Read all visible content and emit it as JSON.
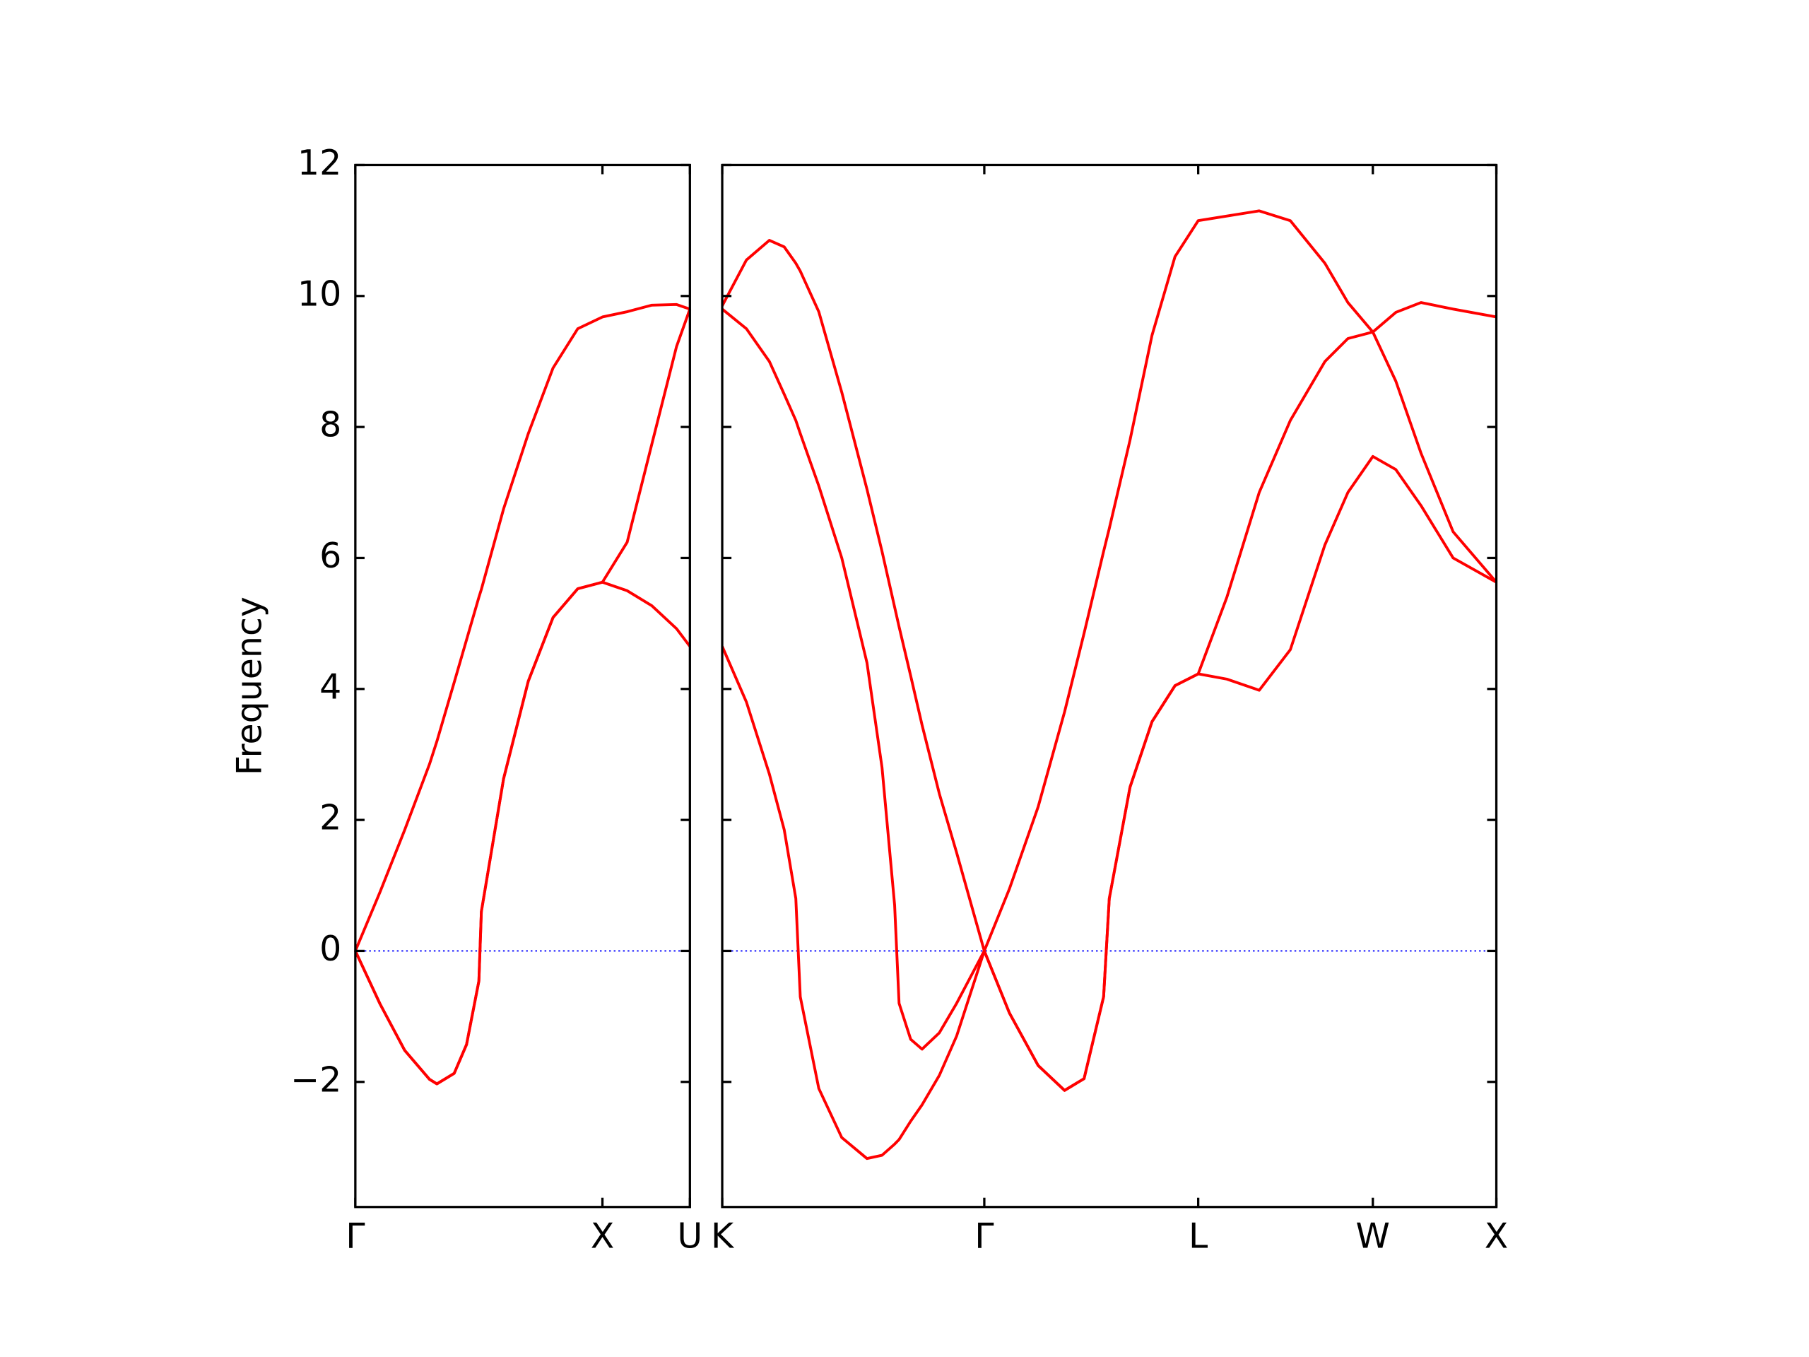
{
  "chart_data": [
    {
      "type": "line",
      "ylabel": "Frequency",
      "x": [
        0,
        0.1,
        0.2,
        0.3,
        0.33,
        0.4,
        0.45,
        0.5,
        0.51,
        0.6,
        0.7,
        0.8,
        0.9,
        1.0,
        1.1,
        1.2,
        1.3,
        1.354
      ],
      "series": [
        {
          "color": "#ff0000",
          "values": [
            0,
            0.9,
            1.85,
            2.85,
            3.2,
            4.1,
            4.75,
            5.4,
            5.52,
            6.75,
            7.9,
            8.9,
            9.5,
            9.68,
            9.76,
            9.86,
            9.87,
            9.8
          ]
        },
        {
          "color": "#ff0000",
          "values": [
            0,
            -0.81,
            -1.52,
            -1.96,
            -2.03,
            -1.87,
            -1.43,
            -0.46,
            0.6,
            2.63,
            4.12,
            5.09,
            5.53,
            5.63,
            6.24,
            7.74,
            9.23,
            9.8
          ]
        },
        {
          "color": "#ff0000",
          "values": [
            0,
            -0.81,
            -1.52,
            -1.96,
            -2.03,
            -1.87,
            -1.43,
            -0.46,
            0.6,
            2.63,
            4.12,
            5.09,
            5.53,
            5.63,
            5.5,
            5.27,
            4.92,
            4.65
          ]
        }
      ],
      "xlim": [
        0,
        1.354
      ],
      "ylim": [
        -3.91,
        12
      ],
      "xticks": [
        {
          "value": 0,
          "label": "Γ"
        },
        {
          "value": 1.0,
          "label": "X"
        },
        {
          "value": 1.354,
          "label": "U"
        }
      ],
      "yticks": [
        {
          "value": -2,
          "label": "−2"
        },
        0,
        2,
        4,
        6,
        8,
        10,
        12
      ],
      "ytick_labels": true,
      "zero_line_color": "#0000ff"
    },
    {
      "type": "line",
      "x": [
        0,
        0.098,
        0.191,
        0.251,
        0.298,
        0.316,
        0.391,
        0.484,
        0.586,
        0.647,
        0.698,
        0.716,
        0.763,
        0.809,
        0.879,
        0.949,
        1.061,
        1.163,
        1.279,
        1.386,
        1.465,
        1.544,
        1.567,
        1.651,
        1.74,
        1.833,
        1.927,
        2.043,
        2.174,
        2.3,
        2.44,
        2.533,
        2.634,
        2.727,
        2.829,
        2.959,
        3.134
      ],
      "series": [
        {
          "color": "#ff0000",
          "values": [
            9.85,
            10.55,
            10.85,
            10.75,
            10.5,
            10.38,
            9.76,
            8.53,
            7.05,
            6.1,
            5.25,
            4.95,
            4.2,
            3.45,
            2.4,
            1.5,
            0,
            0.95,
            2.2,
            3.65,
            4.85,
            6.1,
            6.45,
            7.8,
            9.4,
            10.6,
            11.15,
            11.22,
            11.3,
            11.15,
            10.5,
            9.9,
            9.45,
            9.75,
            9.9,
            9.8,
            9.68
          ]
        },
        {
          "color": "#ff0000",
          "values": [
            9.8,
            9.5,
            9.0,
            8.5,
            8.1,
            7.9,
            7.1,
            6.0,
            4.4,
            2.8,
            0.7,
            -0.8,
            -1.35,
            -1.5,
            -1.25,
            -0.8,
            0,
            -0.95,
            -1.75,
            -2.13,
            -1.95,
            -0.7,
            0.8,
            2.5,
            3.5,
            4.05,
            4.23,
            5.4,
            7.0,
            8.1,
            9.0,
            9.35,
            9.45,
            8.7,
            7.6,
            6.4,
            5.63
          ]
        },
        {
          "color": "#ff0000",
          "values": [
            4.65,
            3.8,
            2.7,
            1.85,
            0.8,
            -0.7,
            -2.1,
            -2.85,
            -3.17,
            -3.12,
            -2.95,
            -2.88,
            -2.6,
            -2.35,
            -1.9,
            -1.3,
            0,
            -0.95,
            -1.75,
            -2.13,
            -1.95,
            -0.7,
            0.8,
            2.5,
            3.5,
            4.05,
            4.23,
            4.15,
            3.98,
            4.6,
            6.2,
            7.0,
            7.55,
            7.35,
            6.8,
            6.0,
            5.63
          ]
        }
      ],
      "xlim": [
        0,
        3.134
      ],
      "ylim": [
        -3.91,
        12
      ],
      "xticks": [
        {
          "value": 0,
          "label": "K"
        },
        {
          "value": 1.061,
          "label": "Γ"
        },
        {
          "value": 1.927,
          "label": "L"
        },
        {
          "value": 2.634,
          "label": "W"
        },
        {
          "value": 3.134,
          "label": "X"
        }
      ],
      "yticks": [
        -2,
        0,
        2,
        4,
        6,
        8,
        10,
        12
      ],
      "ytick_labels": false,
      "zero_line_color": "#0000ff"
    }
  ]
}
